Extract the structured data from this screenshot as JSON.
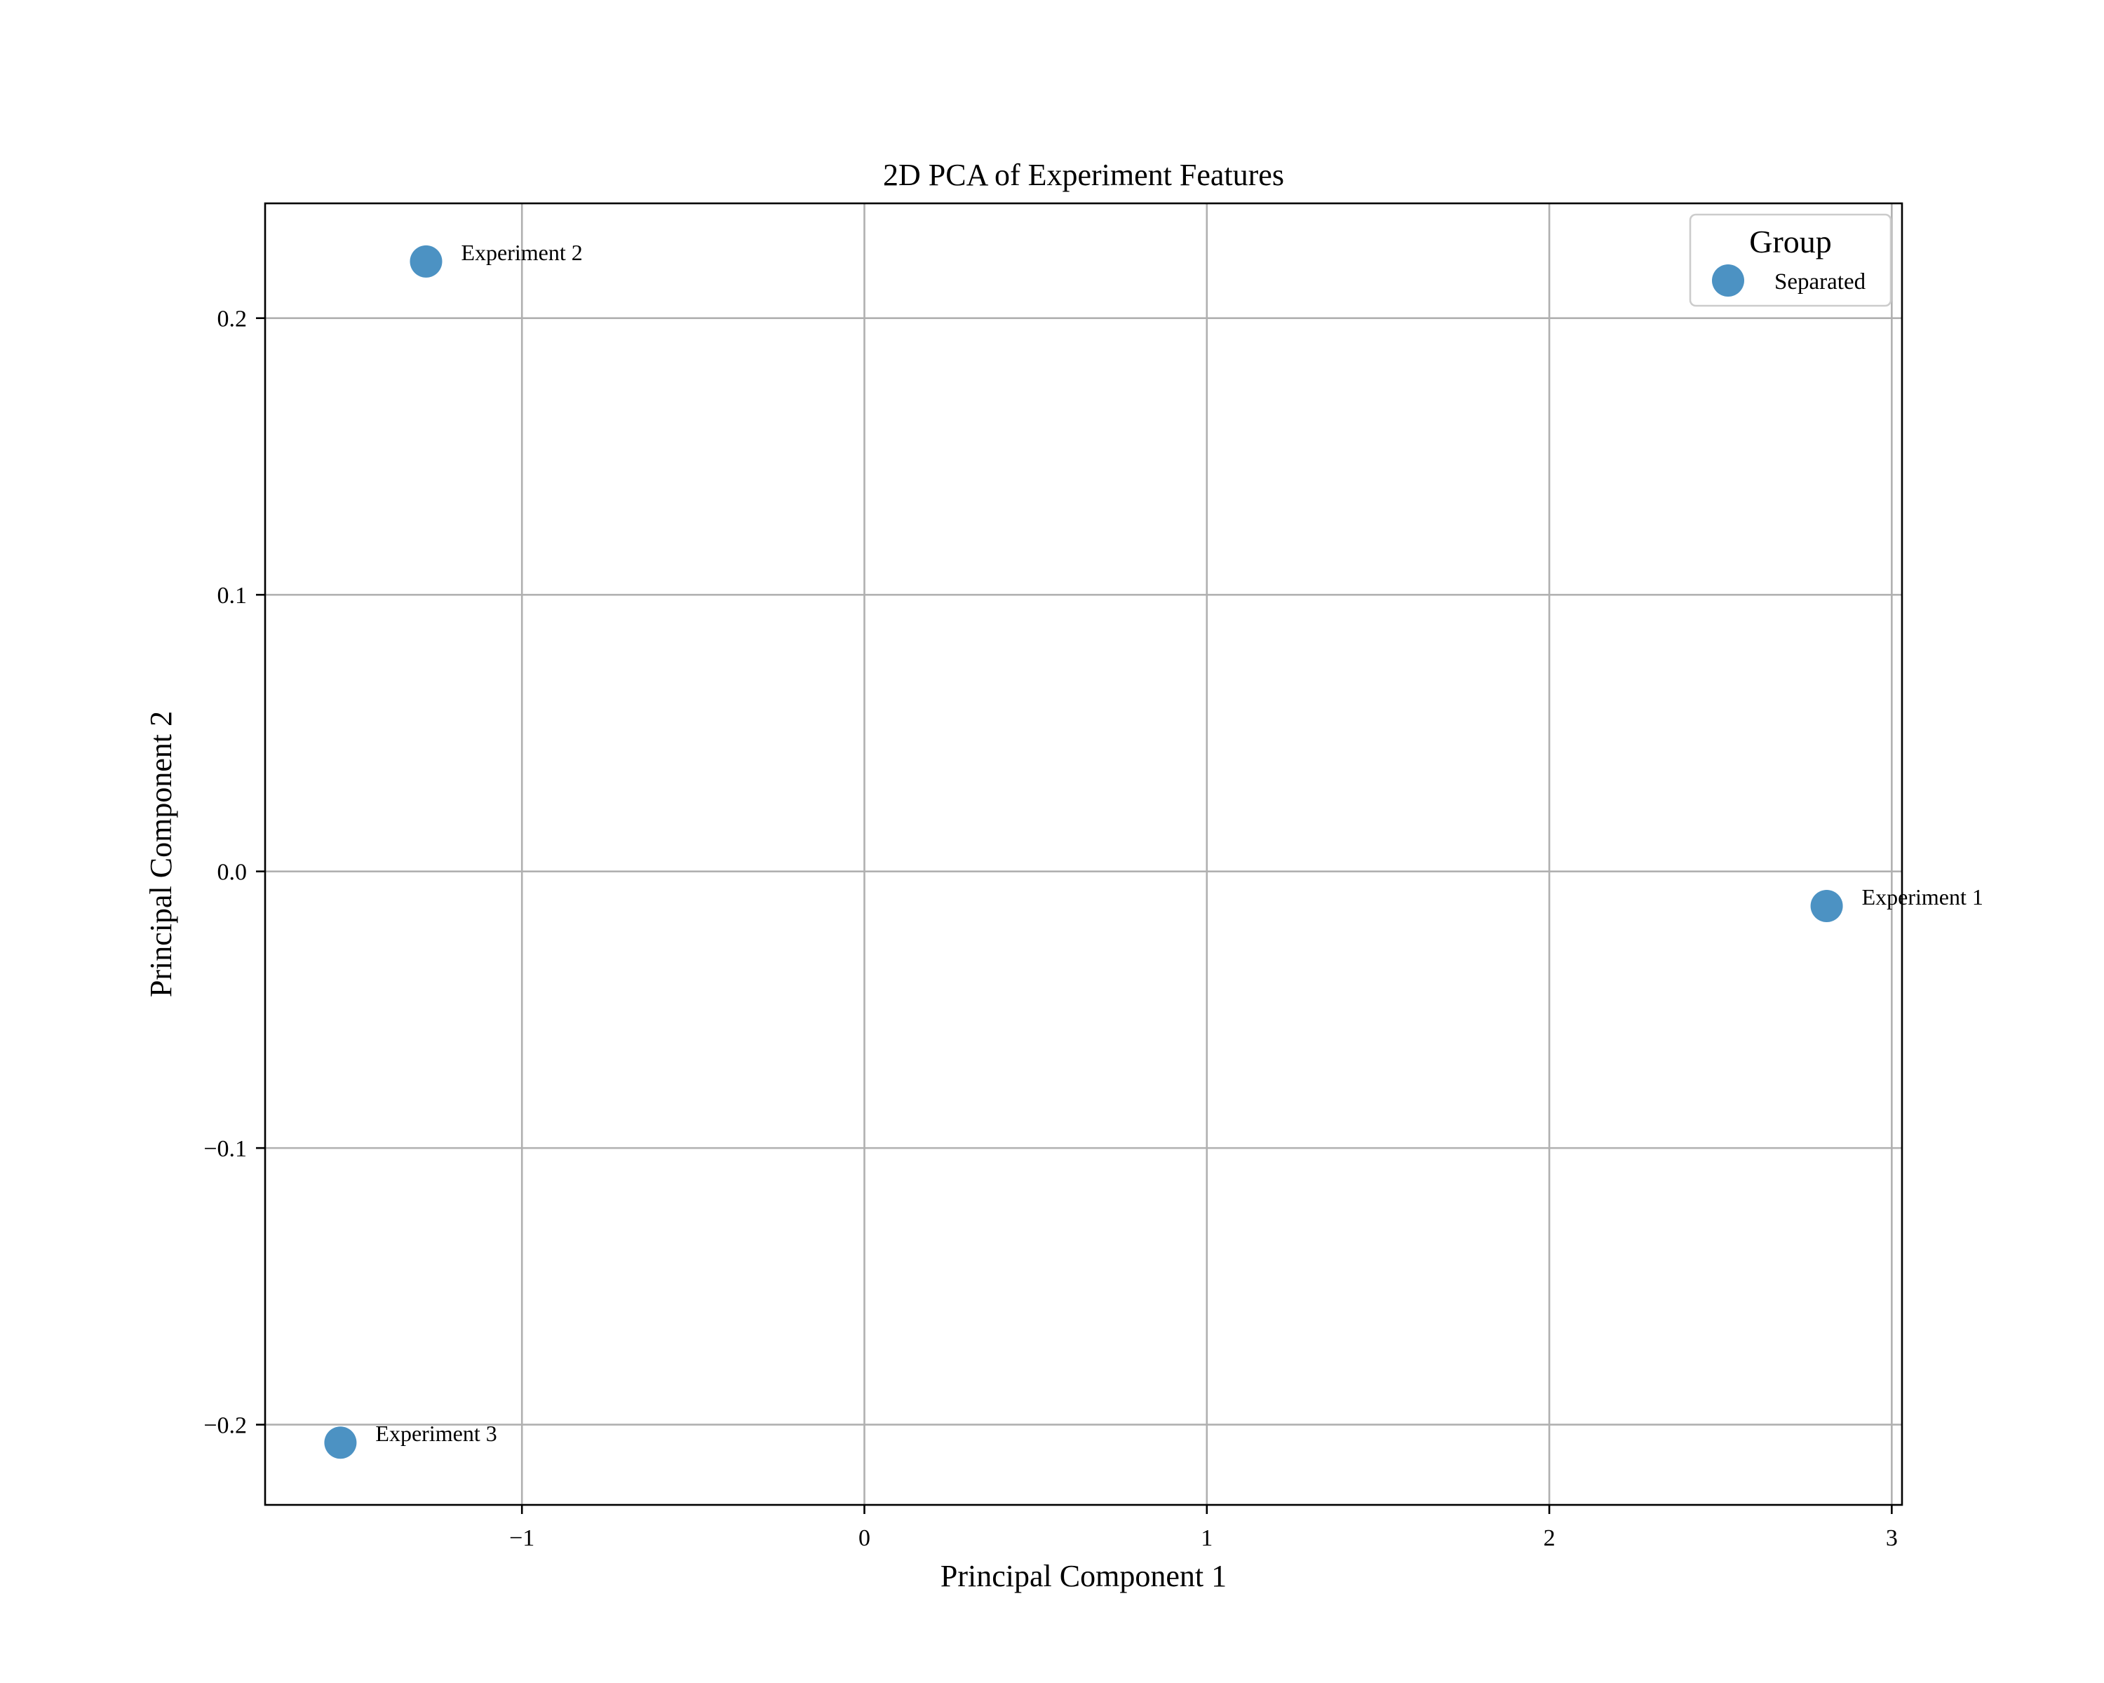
{
  "chart_data": {
    "type": "scatter",
    "title": "2D PCA of Experiment Features",
    "xlabel": "Principal Component 1",
    "ylabel": "Principal Component 2",
    "xlim": [
      -1.75,
      3.03
    ],
    "ylim": [
      -0.229,
      0.2415
    ],
    "xticks": [
      -1,
      0,
      1,
      2,
      3
    ],
    "xtick_labels": [
      "−1",
      "0",
      "1",
      "2",
      "3"
    ],
    "yticks": [
      -0.2,
      -0.1,
      0.0,
      0.1,
      0.2
    ],
    "ytick_labels": [
      "−0.2",
      "−0.1",
      "0.0",
      "0.1",
      "0.2"
    ],
    "grid": true,
    "legend": {
      "title": "Group",
      "placement": "top-right"
    },
    "series": [
      {
        "name": "Separated",
        "color": "#1f77b4",
        "points": [
          {
            "label": "Experiment 1",
            "x": 2.81,
            "y": -0.0125
          },
          {
            "label": "Experiment 2",
            "x": -1.28,
            "y": 0.2205
          },
          {
            "label": "Experiment 3",
            "x": -1.53,
            "y": -0.2065
          }
        ]
      }
    ]
  }
}
